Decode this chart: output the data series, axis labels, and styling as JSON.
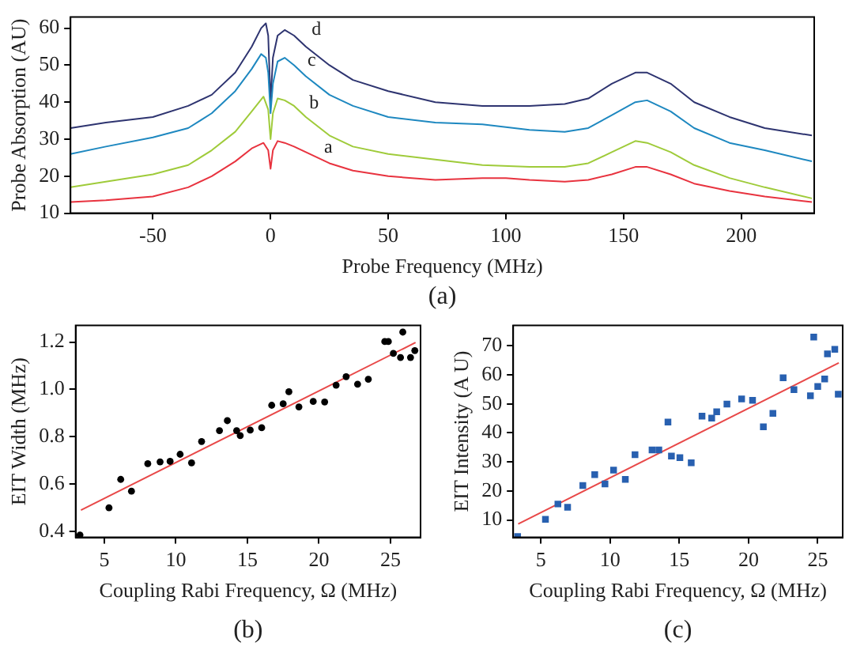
{
  "chart_data": [
    {
      "type": "line",
      "xlabel": "Probe Frequency (MHz)",
      "ylabel": "Probe Absorption (AU)",
      "xlim": [
        -85,
        231
      ],
      "ylim": [
        10,
        63
      ],
      "xticks": [
        -50,
        0,
        50,
        100,
        150,
        200
      ],
      "yticks": [
        10,
        20,
        30,
        40,
        50,
        60
      ],
      "marker": "none",
      "line_style": "solid",
      "annotations": [
        "(a)"
      ],
      "series": [
        {
          "name": "a",
          "color": "#e8333f",
          "x": [
            -85,
            -70,
            -50,
            -35,
            -25,
            -15,
            -8,
            -3,
            -1,
            0,
            1,
            3,
            6,
            10,
            15,
            25,
            35,
            50,
            70,
            90,
            100,
            110,
            125,
            135,
            145,
            155,
            160,
            170,
            180,
            195,
            210,
            230
          ],
          "values": [
            13,
            13.5,
            14.5,
            17,
            20,
            24,
            27.5,
            29,
            27,
            22,
            27,
            29.5,
            29,
            28,
            26.5,
            23.5,
            21.5,
            20,
            19,
            19.5,
            19.5,
            19,
            18.5,
            19,
            20.5,
            22.5,
            22.5,
            20.5,
            18,
            16,
            14.5,
            13
          ]
        },
        {
          "name": "b",
          "color": "#9fcb3a",
          "x": [
            -85,
            -70,
            -50,
            -35,
            -25,
            -15,
            -8,
            -3,
            -1,
            0,
            1,
            3,
            6,
            10,
            15,
            25,
            35,
            50,
            70,
            90,
            110,
            125,
            135,
            145,
            155,
            160,
            170,
            180,
            195,
            210,
            230
          ],
          "values": [
            17,
            18.5,
            20.5,
            23,
            27,
            32,
            37.5,
            41.5,
            38,
            30,
            37,
            41,
            40.5,
            39,
            36,
            31,
            28,
            26,
            24.5,
            23,
            22.5,
            22.5,
            23.5,
            26.5,
            29.5,
            29,
            26.5,
            23,
            19.5,
            17,
            14
          ]
        },
        {
          "name": "c",
          "color": "#1e88c0",
          "x": [
            -85,
            -70,
            -50,
            -35,
            -25,
            -15,
            -8,
            -4,
            -2,
            -1,
            0,
            1,
            3,
            6,
            10,
            15,
            25,
            35,
            50,
            70,
            90,
            110,
            125,
            135,
            145,
            155,
            160,
            170,
            180,
            195,
            210,
            230
          ],
          "values": [
            26,
            28,
            30.5,
            33,
            37,
            43,
            49,
            53,
            52,
            48,
            37,
            45,
            51,
            52,
            50,
            47,
            42,
            39,
            36,
            34.5,
            34,
            32.5,
            32,
            33,
            36.5,
            40,
            40.5,
            37.5,
            33,
            29,
            27,
            24
          ]
        },
        {
          "name": "d",
          "color": "#2e3470",
          "x": [
            -85,
            -70,
            -50,
            -35,
            -25,
            -15,
            -8,
            -4,
            -2,
            -1,
            0,
            1,
            3,
            6,
            10,
            15,
            25,
            35,
            50,
            70,
            90,
            110,
            125,
            135,
            145,
            155,
            160,
            170,
            180,
            195,
            210,
            230
          ],
          "values": [
            33,
            34.5,
            36,
            39,
            42,
            48,
            55,
            60,
            61.3,
            58,
            40,
            52,
            58,
            59.5,
            58,
            55,
            50,
            46,
            43,
            40,
            39,
            39,
            39.5,
            41,
            45,
            48,
            48,
            45,
            40,
            36,
            33,
            31
          ]
        }
      ]
    },
    {
      "type": "scatter",
      "xlabel": "Coupling Rabi Frequency, Ω (MHz)",
      "ylabel": "EIT Width (MHz)",
      "xlim": [
        3,
        27.1
      ],
      "ylim": [
        0.375,
        1.27
      ],
      "xticks": [
        5,
        10,
        15,
        20,
        25
      ],
      "yticks": [
        0.4,
        0.6,
        0.8,
        {
          "value": 1,
          "label": "1.0"
        },
        1.2
      ],
      "marker": "circle",
      "annotations": [
        "(b)"
      ],
      "series": [
        {
          "color": "#000000",
          "x": [
            3.3,
            5.33,
            6.15,
            6.9,
            8.04,
            8.9,
            9.6,
            10.3,
            11.1,
            11.8,
            13.05,
            13.6,
            14.25,
            14.5,
            15.2,
            16,
            16.7,
            17.5,
            17.9,
            18.6,
            19.6,
            20.4,
            21.2,
            21.9,
            22.7,
            23.45,
            24.6,
            24.85,
            25.2,
            25.7,
            25.86,
            26.4,
            26.7
          ],
          "values": [
            0.385,
            0.5,
            0.62,
            0.57,
            0.686,
            0.694,
            0.696,
            0.726,
            0.69,
            0.78,
            0.826,
            0.868,
            0.826,
            0.805,
            0.828,
            0.838,
            0.933,
            0.939,
            0.99,
            0.926,
            0.949,
            0.947,
            1.018,
            1.054,
            1.022,
            1.043,
            1.202,
            1.202,
            1.152,
            1.135,
            1.242,
            1.135,
            1.164
          ]
        },
        {
          "type": "line",
          "marker": "none",
          "color": "#e84848",
          "x": [
            3.37,
            26.75
          ],
          "values": [
            0.49,
            1.198
          ]
        }
      ]
    },
    {
      "type": "scatter",
      "xlabel": "Coupling Rabi Frequency, Ω (MHz)",
      "ylabel": "EIT Intensity (A U)",
      "xlim": [
        3,
        26.8
      ],
      "ylim": [
        4,
        77
      ],
      "xticks": [
        5,
        10,
        15,
        20,
        25
      ],
      "yticks": [
        10,
        20,
        30,
        40,
        50,
        60,
        70
      ],
      "marker": "square",
      "annotations": [
        "(c)"
      ],
      "series": [
        {
          "color": "#2860b0",
          "x": [
            3.32,
            5.33,
            6.23,
            6.93,
            8.03,
            8.89,
            9.63,
            10.25,
            11.1,
            11.8,
            13.03,
            13.52,
            14.18,
            14.43,
            15.04,
            15.86,
            16.64,
            17.34,
            17.7,
            18.44,
            19.5,
            20.29,
            21.07,
            21.76,
            22.5,
            23.28,
            24.47,
            24.71,
            25,
            25.5,
            25.7,
            26.23,
            26.48
          ],
          "values": [
            4.3,
            10.2,
            15.5,
            14.4,
            21.9,
            25.6,
            22.4,
            27.2,
            24,
            32.5,
            34.1,
            34.1,
            43.7,
            32,
            31.5,
            29.7,
            45.8,
            45.1,
            47.3,
            49.9,
            51.7,
            51.2,
            42.1,
            46.7,
            59,
            54.9,
            52.8,
            73,
            56,
            58.6,
            67.2,
            68.8,
            53.3
          ]
        },
        {
          "type": "line",
          "marker": "none",
          "color": "#e84848",
          "x": [
            3.36,
            26.52
          ],
          "values": [
            8.6,
            64.1
          ]
        }
      ]
    }
  ]
}
